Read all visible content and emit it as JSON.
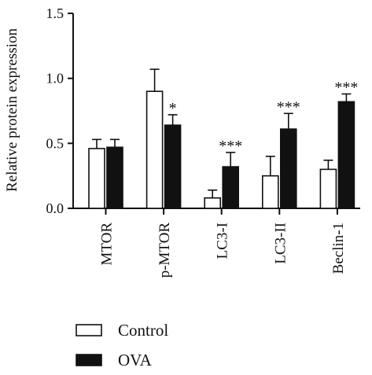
{
  "chart_data": {
    "type": "bar",
    "ylabel": "Relative protein expression",
    "ylim": [
      0,
      1.5
    ],
    "yticks": [
      "0.0",
      "0.5",
      "1.0",
      "1.5"
    ],
    "categories": [
      "MTOR",
      "p-MTOR",
      "LC3-I",
      "LC3-II",
      "Beclin-1"
    ],
    "series": [
      {
        "name": "Control",
        "fill": "#ffffff",
        "values": [
          0.46,
          0.9,
          0.08,
          0.25,
          0.3
        ],
        "errors": [
          0.07,
          0.17,
          0.06,
          0.15,
          0.07
        ]
      },
      {
        "name": "OVA",
        "fill": "#111111",
        "values": [
          0.47,
          0.64,
          0.32,
          0.61,
          0.82
        ],
        "errors": [
          0.06,
          0.08,
          0.11,
          0.12,
          0.06
        ]
      }
    ],
    "significance": [
      "",
      "*",
      "***",
      "***",
      "***"
    ],
    "legend_position": "bottom-left",
    "grid": false
  }
}
